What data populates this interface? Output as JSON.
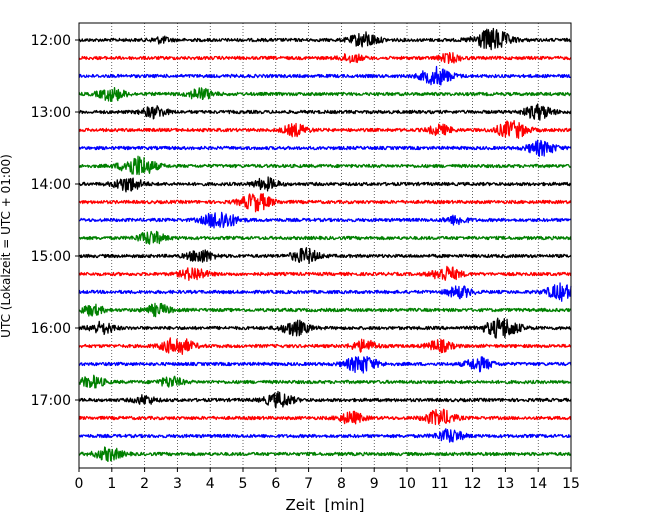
{
  "chart_data": {
    "type": "line",
    "title": "",
    "xlabel": "Zeit  [min]",
    "ylabel": "UTC (Lokalzeit = UTC + 01:00)",
    "xlim": [
      0,
      15
    ],
    "x_ticks": [
      0,
      1,
      2,
      3,
      4,
      5,
      6,
      7,
      8,
      9,
      10,
      11,
      12,
      13,
      14,
      15
    ],
    "y_tick_labels": [
      "12:00",
      "13:00",
      "14:00",
      "15:00",
      "16:00",
      "17:00"
    ],
    "row_interval_minutes": 15,
    "grid": "vertical dotted lines at every minute",
    "colors": [
      "#000000",
      "#ff0000",
      "#0000ff",
      "#008000"
    ],
    "traces": [
      {
        "start": "12:00",
        "color": "#000000",
        "events": [
          [
            8.7,
            1.0
          ],
          [
            12.6,
            1.5
          ],
          [
            2.5,
            0.4
          ]
        ]
      },
      {
        "start": "12:15",
        "color": "#ff0000",
        "events": [
          [
            8.3,
            0.6
          ],
          [
            11.3,
            0.6
          ]
        ]
      },
      {
        "start": "12:30",
        "color": "#0000ff",
        "events": [
          [
            10.9,
            1.2
          ]
        ]
      },
      {
        "start": "12:45",
        "color": "#008000",
        "events": [
          [
            1.0,
            0.9
          ],
          [
            3.7,
            0.8
          ]
        ]
      },
      {
        "start": "13:00",
        "color": "#000000",
        "events": [
          [
            2.3,
            0.8
          ],
          [
            14.0,
            1.0
          ]
        ]
      },
      {
        "start": "13:15",
        "color": "#ff0000",
        "events": [
          [
            6.6,
            0.8
          ],
          [
            11.0,
            0.7
          ],
          [
            13.2,
            1.2
          ]
        ]
      },
      {
        "start": "13:30",
        "color": "#0000ff",
        "events": [
          [
            14.1,
            1.0
          ]
        ]
      },
      {
        "start": "13:45",
        "color": "#008000",
        "events": [
          [
            1.8,
            1.4
          ]
        ]
      },
      {
        "start": "14:00",
        "color": "#000000",
        "events": [
          [
            1.5,
            1.0
          ],
          [
            5.7,
            0.8
          ]
        ]
      },
      {
        "start": "14:15",
        "color": "#ff0000",
        "events": [
          [
            5.4,
            1.2
          ]
        ]
      },
      {
        "start": "14:30",
        "color": "#0000ff",
        "events": [
          [
            4.3,
            1.3
          ],
          [
            11.5,
            0.6
          ]
        ]
      },
      {
        "start": "14:45",
        "color": "#008000",
        "events": [
          [
            2.2,
            0.9
          ]
        ]
      },
      {
        "start": "15:00",
        "color": "#000000",
        "events": [
          [
            3.7,
            0.9
          ],
          [
            6.9,
            1.0
          ]
        ]
      },
      {
        "start": "15:15",
        "color": "#ff0000",
        "events": [
          [
            3.5,
            0.9
          ],
          [
            11.2,
            1.0
          ]
        ]
      },
      {
        "start": "15:30",
        "color": "#0000ff",
        "events": [
          [
            11.6,
            0.8
          ],
          [
            14.7,
            1.1
          ]
        ]
      },
      {
        "start": "15:45",
        "color": "#008000",
        "events": [
          [
            0.4,
            0.7
          ],
          [
            2.4,
            0.8
          ]
        ]
      },
      {
        "start": "16:00",
        "color": "#000000",
        "events": [
          [
            0.7,
            0.8
          ],
          [
            6.6,
            1.0
          ],
          [
            12.9,
            1.4
          ]
        ]
      },
      {
        "start": "16:15",
        "color": "#ff0000",
        "events": [
          [
            3.0,
            1.2
          ],
          [
            8.7,
            0.8
          ],
          [
            11.0,
            0.8
          ]
        ]
      },
      {
        "start": "16:30",
        "color": "#0000ff",
        "events": [
          [
            8.6,
            1.2
          ],
          [
            12.2,
            0.9
          ]
        ]
      },
      {
        "start": "16:45",
        "color": "#008000",
        "events": [
          [
            0.4,
            0.8
          ],
          [
            2.8,
            0.7
          ]
        ]
      },
      {
        "start": "17:00",
        "color": "#000000",
        "events": [
          [
            2.0,
            0.6
          ],
          [
            6.1,
            1.0
          ]
        ]
      },
      {
        "start": "17:15",
        "color": "#ff0000",
        "events": [
          [
            8.3,
            0.8
          ],
          [
            11.0,
            1.1
          ]
        ]
      },
      {
        "start": "17:30",
        "color": "#0000ff",
        "events": [
          [
            11.3,
            0.9
          ]
        ]
      },
      {
        "start": "17:45",
        "color": "#008000",
        "events": [
          [
            0.9,
            0.9
          ]
        ]
      }
    ]
  }
}
